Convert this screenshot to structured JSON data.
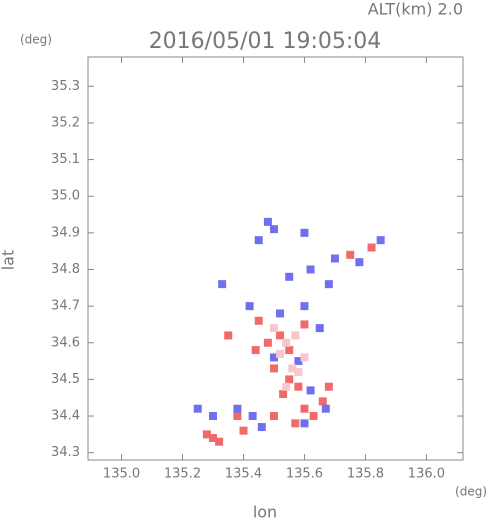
{
  "chart_data": {
    "type": "scatter",
    "title": "2016/05/01 19:05:04",
    "subtitle": "ALT(km) 2.0",
    "x_label": "lon",
    "y_label": "lat",
    "x_unit": "(deg)",
    "y_unit": "(deg)",
    "xlim": [
      134.89,
      136.12
    ],
    "ylim": [
      34.28,
      35.38
    ],
    "xticks": [
      {
        "value": 135.0,
        "label": "135.0"
      },
      135.2,
      135.4,
      135.6,
      135.8,
      {
        "value": 136.0,
        "label": "136.0"
      }
    ],
    "yticks": [
      34.3,
      34.4,
      34.5,
      34.6,
      34.7,
      34.8,
      34.9,
      {
        "value": 35.0,
        "label": "35.0"
      },
      35.1,
      35.2,
      35.3
    ],
    "series": [
      {
        "color": "#f06a6a",
        "x": [
          135.3,
          135.32,
          135.28,
          135.35,
          135.38,
          135.44,
          135.48,
          135.52,
          135.55,
          135.5,
          135.55,
          135.58,
          135.53,
          135.6,
          135.63,
          135.66,
          135.68,
          135.57,
          135.5,
          135.82,
          135.75,
          135.6,
          135.45,
          135.4
        ],
        "y": [
          34.34,
          34.33,
          34.35,
          34.62,
          34.4,
          34.58,
          34.6,
          34.62,
          34.58,
          34.53,
          34.5,
          34.48,
          34.46,
          34.42,
          34.4,
          34.44,
          34.48,
          34.38,
          34.4,
          34.86,
          34.84,
          34.65,
          34.66,
          34.36
        ]
      },
      {
        "color": "#7070ee",
        "x": [
          135.48,
          135.5,
          135.45,
          135.6,
          135.55,
          135.62,
          135.7,
          135.78,
          135.85,
          135.68,
          135.42,
          135.52,
          135.6,
          135.65,
          135.5,
          135.58,
          135.62,
          135.67,
          135.6,
          135.46,
          135.43,
          135.38,
          135.3,
          135.25,
          135.33
        ],
        "y": [
          34.93,
          34.91,
          34.88,
          34.9,
          34.78,
          34.8,
          34.83,
          34.82,
          34.88,
          34.76,
          34.7,
          34.68,
          34.7,
          34.64,
          34.56,
          34.55,
          34.47,
          34.42,
          34.38,
          34.37,
          34.4,
          34.42,
          34.4,
          34.42,
          34.76
        ]
      },
      {
        "color": "#f6c8cc",
        "x": [
          135.5,
          135.54,
          135.57,
          135.52,
          135.56,
          135.58,
          135.54,
          135.6
        ],
        "y": [
          34.64,
          34.6,
          34.62,
          34.57,
          34.53,
          34.52,
          34.48,
          34.56
        ]
      }
    ]
  }
}
